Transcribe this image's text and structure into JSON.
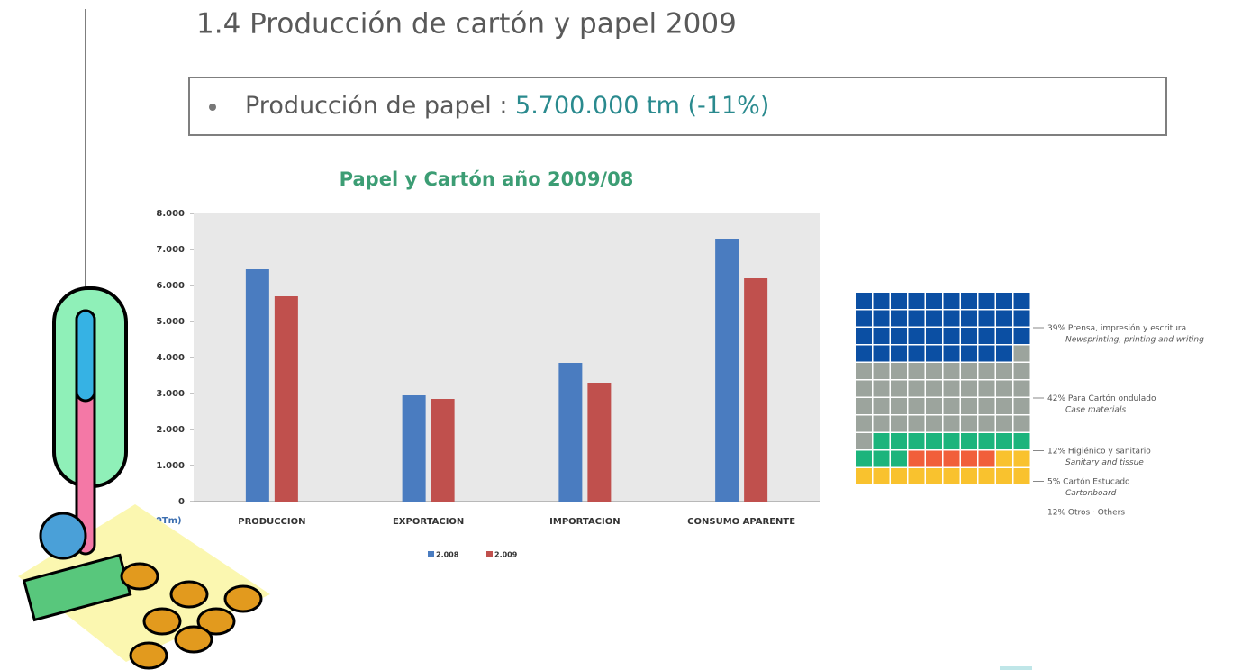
{
  "slide": {
    "title": "1.4 Producción de cartón y papel 2009",
    "bullet_label": "Producción de papel :",
    "bullet_value": "5.700.000 tm (-11%)"
  },
  "chart_data": [
    {
      "type": "bar",
      "title": "Papel y Cartón año 2009/08",
      "x_label": "(000Tm)",
      "categories": [
        "PRODUCCION",
        "EXPORTACION",
        "IMPORTACION",
        "CONSUMO APARENTE"
      ],
      "series": [
        {
          "name": "2.008",
          "color": "#4a7cc0",
          "values": [
            6450,
            2950,
            3850,
            7300
          ]
        },
        {
          "name": "2.009",
          "color": "#c0504d",
          "values": [
            5700,
            2850,
            3300,
            6200
          ]
        }
      ],
      "ylim": [
        0,
        8000
      ],
      "yticks": [
        0,
        {
          "value": 1000,
          "label": "1.000"
        },
        {
          "value": 2000,
          "label": "2.000"
        },
        {
          "value": 3000,
          "label": "3.000"
        },
        {
          "value": 4000,
          "label": "4.000"
        },
        {
          "value": 5000,
          "label": "5.000"
        },
        {
          "value": 6000,
          "label": "6.000"
        },
        {
          "value": 7000,
          "label": "7.000"
        },
        {
          "value": 8000,
          "label": "8.000"
        }
      ]
    },
    {
      "type": "waffle",
      "series": [
        {
          "name": "Prensa, impresión y escritura",
          "name_en": "Newsprinting, printing and writing",
          "color": "#0b4fa3",
          "values": [
            39
          ],
          "value_labels": [
            "39%"
          ]
        },
        {
          "name": "Para Cartón ondulado",
          "name_en": "Case materials",
          "color": "#9ca49d",
          "values": [
            42
          ],
          "value_labels": [
            "42%"
          ]
        },
        {
          "name": "Higiénico y sanitario",
          "name_en": "Sanitary and tissue",
          "color": "#1cb47c",
          "values": [
            12
          ],
          "value_labels": [
            "12%"
          ]
        },
        {
          "name": "Cartón Estucado",
          "name_en": "Cartonboard",
          "color": "#f15f3a",
          "values": [
            5
          ],
          "value_labels": [
            "5%"
          ]
        },
        {
          "name": "Otros · Others",
          "color": "#f9c22e",
          "values": [
            12
          ],
          "value_labels": [
            "12%"
          ]
        }
      ]
    }
  ]
}
